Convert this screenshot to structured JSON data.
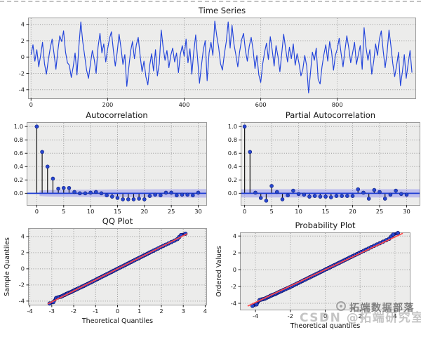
{
  "watermarks": {
    "primary": "拓端数据部落",
    "secondary": "CSDN @拓端研究室"
  },
  "colors": {
    "axes_background": "#ececeb",
    "grid": "#9a9a9a",
    "series_blue": "#2143db",
    "stem_black": "#161616",
    "marker_blue": "#2646d0",
    "zero_line_blue": "#1f3fd4",
    "confidence_band": "#8888ee",
    "scatter_navy": "#181880",
    "fit_line_red": "#ff4a4a"
  },
  "chart_data": [
    {
      "id": "ts",
      "type": "line",
      "title": "Time Series",
      "xlabel": "",
      "ylabel": "",
      "grid": "dotted",
      "xlim": [
        -6,
        1004
      ],
      "ylim": [
        -5.05,
        4.75
      ],
      "xticks": [
        [
          0,
          "0"
        ],
        [
          200,
          "200"
        ],
        [
          400,
          "400"
        ],
        [
          600,
          "600"
        ],
        [
          800,
          "800"
        ]
      ],
      "yticks": [
        [
          -4,
          "-4"
        ],
        [
          -2,
          "-2"
        ],
        [
          0,
          "0"
        ],
        [
          2,
          "2"
        ],
        [
          4,
          "4"
        ]
      ],
      "x_start": 0,
      "x_step": 5,
      "values": [
        0.3,
        1.5,
        -0.5,
        0.9,
        -1.2,
        0.2,
        1.8,
        -0.8,
        -2.1,
        -0.4,
        1.1,
        2.2,
        0.4,
        -1.5,
        0.8,
        2.6,
        1.9,
        3.2,
        0.6,
        -0.7,
        -1.0,
        -2.5,
        -1.2,
        0.5,
        -2.2,
        1.4,
        4.3,
        1.9,
        0.2,
        -1.6,
        -2.6,
        -0.9,
        0.8,
        -0.3,
        -2.0,
        1.2,
        2.9,
        0.5,
        1.6,
        -0.6,
        1.0,
        2.3,
        3.1,
        0.8,
        -1.1,
        0.6,
        2.8,
        1.1,
        -0.9,
        0.3,
        -3.6,
        -1.4,
        0.7,
        1.9,
        -0.2,
        1.5,
        2.4,
        0.1,
        -1.8,
        -0.5,
        -2.4,
        -3.4,
        -1.0,
        0.4,
        -1.7,
        0.9,
        -2.3,
        -0.8,
        3.3,
        1.2,
        -0.4,
        0.8,
        -1.3,
        0.2,
        1.1,
        -0.6,
        0.5,
        -1.9,
        0.3,
        1.4,
        0.1,
        2.2,
        -0.7,
        1.0,
        -2.1,
        0.6,
        2.7,
        -0.2,
        -3.2,
        -1.1,
        0.9,
        2.0,
        -2.9,
        0.5,
        1.8,
        0.2,
        4.4,
        2.6,
        1.2,
        -0.8,
        -1.6,
        0.4,
        1.9,
        4.3,
        1.1,
        3.9,
        1.6,
        0.3,
        -1.2,
        0.7,
        2.1,
        2.9,
        0.8,
        -0.5,
        1.3,
        2.4,
        0.9,
        -1.4,
        0.2,
        -2.2,
        -3.1,
        -0.9,
        0.6,
        1.7,
        -0.3,
        2.5,
        0.8,
        -1.1,
        1.4,
        0.1,
        -1.8,
        0.5,
        2.8,
        1.0,
        -0.6,
        1.2,
        -0.2,
        1.6,
        -1.0,
        0.4,
        -0.8,
        -2.3,
        -1.5,
        0.2,
        -1.1,
        -4.4,
        -1.9,
        0.6,
        -0.4,
        1.1,
        -2.7,
        -3.3,
        -1.2,
        0.3,
        1.5,
        -0.5,
        1.9,
        0.7,
        -1.6,
        0.2,
        1.0,
        2.3,
        0.4,
        -1.2,
        0.8,
        2.6,
        1.1,
        -0.7,
        0.5,
        1.8,
        -0.9,
        0.3,
        1.4,
        -1.5,
        3.6,
        1.2,
        -0.4,
        0.9,
        -2.1,
        -0.6,
        1.6,
        0.2,
        2.2,
        3.2,
        0.7,
        -1.3,
        0.5,
        3.3,
        1.4,
        -0.8,
        -2.4,
        -1.0,
        0.6,
        -3.5,
        -1.8,
        0.3,
        -2.6,
        -0.9,
        0.8,
        -1.9
      ]
    },
    {
      "id": "acf",
      "type": "stem",
      "title": "Autocorrelation",
      "grid": "dotted",
      "xlim": [
        -1.75,
        31.5
      ],
      "ylim": [
        -0.175,
        1.055
      ],
      "xticks": [
        [
          0,
          "0"
        ],
        [
          5,
          "5"
        ],
        [
          10,
          "10"
        ],
        [
          15,
          "15"
        ],
        [
          20,
          "20"
        ],
        [
          25,
          "25"
        ],
        [
          30,
          "30"
        ]
      ],
      "yticks": [
        [
          0,
          "0.0"
        ],
        [
          0.2,
          "0.2"
        ],
        [
          0.4,
          "0.4"
        ],
        [
          0.6,
          "0.6"
        ],
        [
          0.8,
          "0.8"
        ],
        [
          1.0,
          "1.0"
        ]
      ],
      "lags_note": "index of values array = lag 0..30",
      "values": [
        1.0,
        0.62,
        0.4,
        0.22,
        0.07,
        0.08,
        0.08,
        0.02,
        0.0,
        0.0,
        0.01,
        0.02,
        0.0,
        -0.03,
        -0.05,
        -0.07,
        -0.09,
        -0.09,
        -0.09,
        -0.08,
        -0.09,
        -0.04,
        -0.02,
        -0.03,
        0.01,
        0.01,
        -0.03,
        -0.02,
        -0.02,
        -0.03,
        0.01
      ],
      "conf_band": [
        [
          0.5,
          0.042
        ],
        [
          2,
          0.048
        ],
        [
          5,
          0.052
        ],
        [
          10,
          0.055
        ],
        [
          15,
          0.058
        ],
        [
          20,
          0.06
        ],
        [
          25,
          0.062
        ],
        [
          31.5,
          0.065
        ]
      ]
    },
    {
      "id": "pacf",
      "type": "stem",
      "title": "Partial Autocorrelation",
      "grid": "dotted",
      "xlim": [
        -0.6,
        32.4
      ],
      "ylim": [
        -0.175,
        1.055
      ],
      "xticks": [
        [
          0,
          "0"
        ],
        [
          5,
          "5"
        ],
        [
          10,
          "10"
        ],
        [
          15,
          "15"
        ],
        [
          20,
          "20"
        ],
        [
          25,
          "25"
        ],
        [
          30,
          "30"
        ]
      ],
      "yticks": [
        [
          0,
          "0.0"
        ],
        [
          0.2,
          "0.2"
        ],
        [
          0.4,
          "0.4"
        ],
        [
          0.6,
          "0.6"
        ],
        [
          0.8,
          "0.8"
        ],
        [
          1.0,
          "1.0"
        ]
      ],
      "lags_note": "index of values array = lag 0..30",
      "values": [
        1.0,
        0.62,
        0.01,
        -0.07,
        -0.11,
        0.11,
        0.02,
        -0.09,
        -0.03,
        0.04,
        -0.01,
        -0.02,
        -0.05,
        -0.04,
        -0.05,
        -0.05,
        -0.06,
        -0.04,
        -0.04,
        -0.04,
        -0.04,
        0.06,
        0.01,
        -0.08,
        0.05,
        0.02,
        -0.08,
        -0.02,
        0.04,
        -0.01,
        -0.02
      ],
      "conf_band": [
        [
          -0.6,
          0.062
        ],
        [
          32.4,
          0.062
        ]
      ]
    },
    {
      "id": "qq",
      "type": "scatter",
      "title": "QQ Plot",
      "xlabel": "Theoretical Quantiles",
      "ylabel": "Sample Quantiles",
      "grid": "dotted",
      "xlim": [
        -4.05,
        4.05
      ],
      "ylim": [
        -4.45,
        4.95
      ],
      "xticks": [
        [
          -4,
          "-4"
        ],
        [
          -3,
          "-3"
        ],
        [
          -2,
          "-2"
        ],
        [
          -1,
          "-1"
        ],
        [
          0,
          "0"
        ],
        [
          1,
          "1"
        ],
        [
          2,
          "2"
        ],
        [
          3,
          "3"
        ],
        [
          4,
          "4"
        ]
      ],
      "yticks": [
        [
          -4,
          "-4"
        ],
        [
          -2,
          "-2"
        ],
        [
          0,
          "0"
        ],
        [
          2,
          "2"
        ],
        [
          4,
          "4"
        ]
      ],
      "fit_line": {
        "x1": -3.18,
        "y1": -4.35,
        "x2": 3.18,
        "y2": 4.35
      },
      "points": [
        [
          -3.1,
          -4.3
        ],
        [
          -2.93,
          -4.13
        ],
        [
          -2.8,
          -3.62
        ],
        [
          -2.72,
          -3.55
        ],
        [
          -2.65,
          -3.5
        ],
        [
          -2.58,
          -3.45
        ],
        [
          -2.52,
          -3.38
        ],
        [
          -2.46,
          -3.28
        ],
        [
          -2.4,
          -3.22
        ],
        [
          -2.34,
          -3.12
        ],
        [
          -2.28,
          -3.05
        ],
        [
          -2.22,
          -2.98
        ],
        [
          -2.16,
          -2.92
        ],
        [
          -2.1,
          -2.85
        ],
        [
          -2.04,
          -2.76
        ],
        [
          -1.98,
          -2.68
        ],
        [
          -1.92,
          -2.6
        ],
        [
          -1.85,
          -2.52
        ],
        [
          -1.78,
          -2.42
        ],
        [
          -1.7,
          -2.32
        ],
        [
          -1.62,
          -2.22
        ],
        [
          -1.54,
          -2.12
        ],
        [
          -1.46,
          -2.01
        ],
        [
          -1.38,
          -1.9
        ],
        [
          -1.3,
          -1.79
        ],
        [
          -1.22,
          -1.68
        ],
        [
          -1.14,
          -1.57
        ],
        [
          -1.06,
          -1.46
        ],
        [
          -0.98,
          -1.35
        ],
        [
          -0.9,
          -1.24
        ],
        [
          -0.82,
          -1.13
        ],
        [
          -0.74,
          -1.02
        ],
        [
          -0.66,
          -0.91
        ],
        [
          -0.58,
          -0.8
        ],
        [
          -0.5,
          -0.69
        ],
        [
          -0.42,
          -0.58
        ],
        [
          -0.34,
          -0.47
        ],
        [
          -0.26,
          -0.36
        ],
        [
          -0.18,
          -0.25
        ],
        [
          -0.1,
          -0.14
        ],
        [
          -0.02,
          -0.03
        ],
        [
          0.06,
          0.08
        ],
        [
          0.14,
          0.19
        ],
        [
          0.22,
          0.3
        ],
        [
          0.3,
          0.41
        ],
        [
          0.38,
          0.52
        ],
        [
          0.46,
          0.63
        ],
        [
          0.54,
          0.74
        ],
        [
          0.62,
          0.85
        ],
        [
          0.7,
          0.96
        ],
        [
          0.78,
          1.07
        ],
        [
          0.86,
          1.18
        ],
        [
          0.94,
          1.29
        ],
        [
          1.02,
          1.4
        ],
        [
          1.1,
          1.51
        ],
        [
          1.18,
          1.62
        ],
        [
          1.27,
          1.74
        ],
        [
          1.36,
          1.86
        ],
        [
          1.45,
          1.99
        ],
        [
          1.54,
          2.11
        ],
        [
          1.64,
          2.24
        ],
        [
          1.74,
          2.38
        ],
        [
          1.85,
          2.52
        ],
        [
          1.96,
          2.67
        ],
        [
          2.08,
          2.83
        ],
        [
          2.2,
          2.99
        ],
        [
          2.33,
          3.15
        ],
        [
          2.46,
          3.32
        ],
        [
          2.6,
          3.5
        ],
        [
          2.73,
          3.68
        ],
        [
          2.82,
          3.95
        ],
        [
          2.9,
          4.18
        ],
        [
          3.1,
          4.35
        ]
      ]
    },
    {
      "id": "prob",
      "type": "scatter",
      "title": "Probability Plot",
      "xlabel": "Theoretical quantiles",
      "ylabel": "Ordered Values",
      "grid": "dotted",
      "xlim": [
        -4.85,
        4.85
      ],
      "ylim": [
        -4.75,
        4.35
      ],
      "xticks": [
        [
          -4,
          "-4"
        ],
        [
          -2,
          "-2"
        ],
        [
          0,
          "0"
        ],
        [
          2,
          "2"
        ],
        [
          4,
          "4"
        ]
      ],
      "yticks": [
        [
          -4,
          "-4"
        ],
        [
          -2,
          "-2"
        ],
        [
          0,
          "0"
        ],
        [
          2,
          "2"
        ],
        [
          4,
          "4"
        ]
      ],
      "points_ref": "qq",
      "x_scale": 1.345,
      "fit_line": {
        "x1": -4.45,
        "y1": -4.33,
        "x2": 4.45,
        "y2": 4.33
      }
    }
  ]
}
